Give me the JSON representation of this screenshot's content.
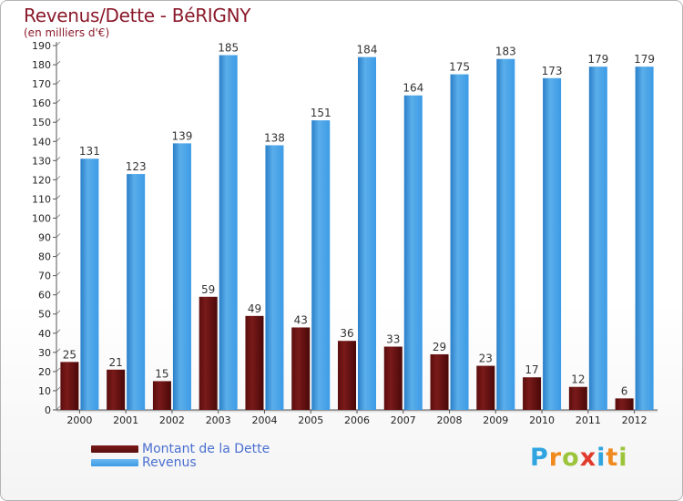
{
  "colors": {
    "dette": "#7a1a1a",
    "revenus": "#3d9be6",
    "title": "#8b1a2b",
    "legend_text": "#4a6fd0"
  },
  "chart_data": {
    "type": "bar",
    "title": "Revenus/Dette - BéRIGNY",
    "subtitle": "(en milliers d'€)",
    "xlabel": "",
    "ylabel": "",
    "ylim": [
      0,
      190
    ],
    "ytick_step": 10,
    "categories": [
      "2000",
      "2001",
      "2002",
      "2003",
      "2004",
      "2005",
      "2006",
      "2007",
      "2008",
      "2009",
      "2010",
      "2011",
      "2012"
    ],
    "series": [
      {
        "name": "Montant de la Dette",
        "key": "dette",
        "values": [
          25,
          21,
          15,
          59,
          49,
          43,
          36,
          33,
          29,
          23,
          17,
          12,
          6
        ]
      },
      {
        "name": "Revenus",
        "key": "revenus",
        "values": [
          131,
          123,
          139,
          185,
          138,
          151,
          184,
          164,
          175,
          183,
          173,
          179,
          179
        ]
      }
    ],
    "legend_position": "bottom-left",
    "grid": false
  },
  "logo": {
    "letters": [
      "P",
      "r",
      "o",
      "x",
      "i",
      "t",
      "i"
    ],
    "colors": [
      "#2fa4e0",
      "#f08a1e",
      "#9bc43a",
      "#e23b2e",
      "#2fa4e0",
      "#f08a1e",
      "#9bc43a"
    ]
  }
}
